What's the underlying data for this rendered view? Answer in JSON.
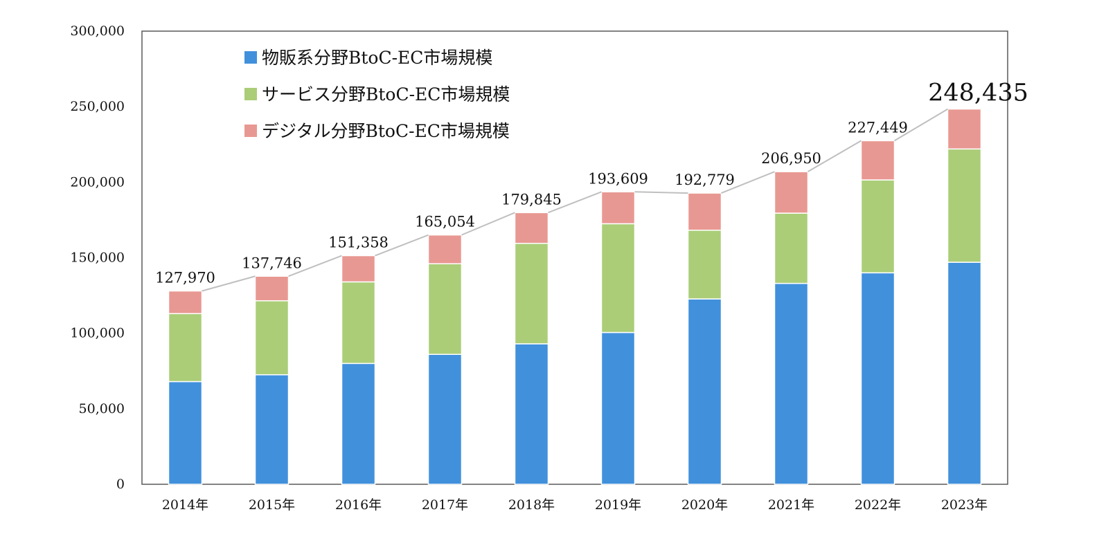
{
  "colors": {
    "goods": "#4190dc",
    "services": "#abcd78",
    "digital": "#e89892",
    "total_line": "#bfbfbf",
    "axis": "#595959"
  },
  "chart_data": {
    "type": "bar",
    "stacked": true,
    "categories": [
      "2014年",
      "2015年",
      "2016年",
      "2017年",
      "2018年",
      "2019年",
      "2020年",
      "2021年",
      "2022年",
      "2023年"
    ],
    "series": [
      {
        "name": "物販系分野BtoC-EC市場規模",
        "color_key": "goods",
        "values": [
          68000,
          72500,
          80000,
          86000,
          93000,
          100500,
          122700,
          133000,
          140000,
          147000
        ]
      },
      {
        "name": "サービス分野BtoC-EC市場規模",
        "color_key": "services",
        "values": [
          45000,
          49000,
          54000,
          60000,
          66500,
          72000,
          45500,
          46500,
          61500,
          75000
        ]
      },
      {
        "name": "デジタル分野BtoC-EC市場規模",
        "color_key": "digital",
        "values": [
          14970,
          16246,
          17358,
          19054,
          20345,
          21109,
          24579,
          27450,
          25949,
          26435
        ]
      }
    ],
    "totals": [
      127970,
      137746,
      151358,
      165054,
      179845,
      193609,
      192779,
      206950,
      227449,
      248435
    ],
    "total_labels": [
      "127,970",
      "137,746",
      "151,358",
      "165,054",
      "179,845",
      "193,609",
      "192,779",
      "206,950",
      "227,449",
      "248,435"
    ],
    "emphasized_total_index": 9,
    "total_line": true,
    "ylim": [
      0,
      300000
    ],
    "yticks": [
      0,
      50000,
      100000,
      150000,
      200000,
      250000,
      300000
    ],
    "ytick_labels": [
      "0",
      "50,000",
      "100,000",
      "150,000",
      "200,000",
      "250,000",
      "300,000"
    ],
    "grid": false,
    "legend_position": "top-left",
    "title": "",
    "xlabel": "",
    "ylabel": ""
  }
}
